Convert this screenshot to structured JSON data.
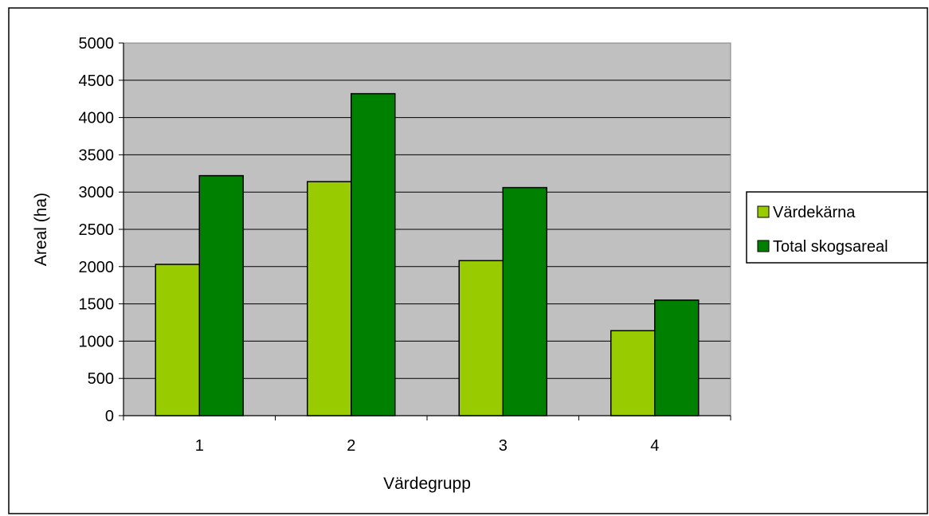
{
  "chart_data": {
    "type": "bar",
    "title": "",
    "xlabel": "Värdegrupp",
    "ylabel": "Areal (ha)",
    "categories": [
      "1",
      "2",
      "3",
      "4"
    ],
    "ylim": [
      0,
      5000
    ],
    "yticks": [
      0,
      500,
      1000,
      1500,
      2000,
      2500,
      3000,
      3500,
      4000,
      4500,
      5000
    ],
    "grid": true,
    "legend_position": "right",
    "plot_background": "#c0c0c0",
    "series": [
      {
        "name": "Värdekärna",
        "color": "#99cc00",
        "values": [
          2030,
          3140,
          2080,
          1140
        ]
      },
      {
        "name": "Total skogsareal",
        "color": "#008000",
        "values": [
          3220,
          4320,
          3060,
          1550
        ]
      }
    ]
  }
}
